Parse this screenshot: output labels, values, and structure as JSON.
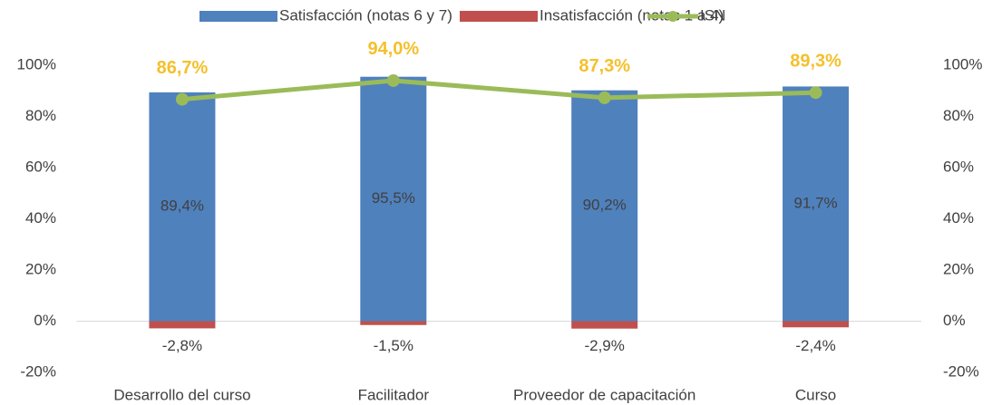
{
  "chart_data": {
    "type": "bar",
    "categories": [
      "Desarrollo del curso",
      "Facilitador",
      "Proveedor de capacitación",
      "Curso"
    ],
    "series": [
      {
        "name": "Satisfacción (notas 6 y 7)",
        "type": "bar",
        "color": "#4f81bd",
        "values": [
          89.4,
          95.5,
          90.2,
          91.7
        ],
        "value_labels": [
          "89,4%",
          "95,5%",
          "90,2%",
          "91,7%"
        ]
      },
      {
        "name": "Insatisfacción (notas 1 a 4)",
        "type": "bar",
        "color": "#c0504d",
        "values": [
          -2.8,
          -1.5,
          -2.9,
          -2.4
        ],
        "value_labels": [
          "-2,8%",
          "-1,5%",
          "-2,9%",
          "-2,4%"
        ]
      },
      {
        "name": "ISN",
        "type": "line",
        "axis": "y2",
        "color": "#9bbb59",
        "label_color": "#f5c02c",
        "values": [
          86.7,
          94.0,
          87.3,
          89.3
        ],
        "value_labels": [
          "86,7%",
          "94,0%",
          "87,3%",
          "89,3%"
        ]
      }
    ],
    "ylim": [
      -20,
      100
    ],
    "yticks": [
      {
        "value": -20,
        "label": "-20%"
      },
      {
        "value": 0,
        "label": "0%"
      },
      {
        "value": 20,
        "label": "20%"
      },
      {
        "value": 40,
        "label": "40%"
      },
      {
        "value": 60,
        "label": "60%"
      },
      {
        "value": 80,
        "label": "80%"
      },
      {
        "value": 100,
        "label": "100%"
      }
    ],
    "y2lim": [
      -20,
      100
    ],
    "y2ticks": [
      {
        "value": -20,
        "label": "-20%"
      },
      {
        "value": 0,
        "label": "0%"
      },
      {
        "value": 20,
        "label": "20%"
      },
      {
        "value": 40,
        "label": "40%"
      },
      {
        "value": 60,
        "label": "60%"
      },
      {
        "value": 80,
        "label": "80%"
      },
      {
        "value": 100,
        "label": "100%"
      }
    ],
    "grid": false,
    "legend": "top"
  }
}
